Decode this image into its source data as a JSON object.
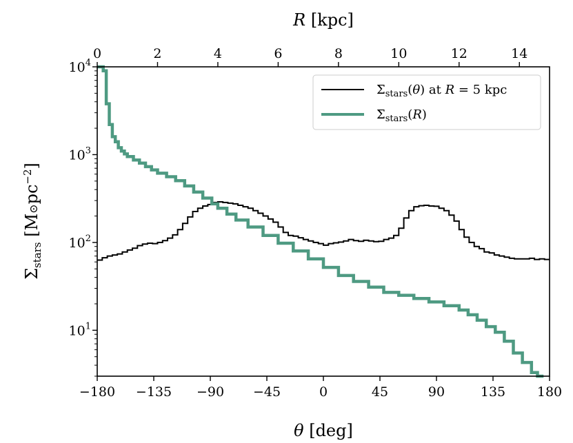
{
  "chart_data": {
    "type": "line",
    "bottom_axis": {
      "label": "θ [deg]",
      "range": [
        -180,
        180
      ],
      "ticks": [
        -180,
        -135,
        -90,
        -45,
        0,
        45,
        90,
        135,
        180
      ],
      "tick_labels": [
        "−180",
        "−135",
        "−90",
        "−45",
        "0",
        "45",
        "90",
        "135",
        "180"
      ]
    },
    "top_axis": {
      "label": "R [kpc]",
      "range": [
        0,
        15
      ],
      "ticks": [
        0,
        2,
        4,
        6,
        8,
        10,
        12,
        14
      ],
      "tick_labels": [
        "0",
        "2",
        "4",
        "6",
        "8",
        "10",
        "12",
        "14"
      ]
    },
    "y_axis": {
      "label": "Σstars [M⊙pc−2]",
      "scale": "log",
      "range": [
        3,
        10000
      ],
      "ticks": [
        10,
        100,
        1000,
        10000
      ],
      "tick_labels": [
        "10^1",
        "10^2",
        "10^3",
        "10^4"
      ]
    },
    "legend": {
      "position": "top-right"
    },
    "series": [
      {
        "name": "Σstars(θ) at R = 5 kpc",
        "axis": "bottom",
        "color": "#000000",
        "style": "step",
        "x": [
          -180,
          -176,
          -172,
          -168,
          -164,
          -160,
          -156,
          -152,
          -148,
          -144,
          -140,
          -136,
          -132,
          -128,
          -124,
          -120,
          -116,
          -112,
          -108,
          -104,
          -100,
          -96,
          -92,
          -88,
          -84,
          -80,
          -76,
          -72,
          -68,
          -64,
          -60,
          -56,
          -52,
          -48,
          -44,
          -40,
          -36,
          -32,
          -28,
          -24,
          -20,
          -16,
          -12,
          -8,
          -4,
          0,
          4,
          8,
          12,
          16,
          20,
          24,
          28,
          32,
          36,
          40,
          44,
          48,
          52,
          56,
          60,
          64,
          68,
          72,
          76,
          80,
          84,
          88,
          92,
          96,
          100,
          104,
          108,
          112,
          116,
          120,
          124,
          128,
          132,
          136,
          140,
          144,
          148,
          152,
          156,
          160,
          164,
          168,
          172,
          176
        ],
        "y": [
          63,
          67,
          70,
          72,
          74,
          78,
          82,
          86,
          92,
          96,
          98,
          97,
          100,
          105,
          112,
          122,
          140,
          165,
          195,
          225,
          245,
          260,
          270,
          285,
          290,
          285,
          280,
          275,
          265,
          255,
          245,
          230,
          215,
          200,
          185,
          170,
          150,
          130,
          120,
          118,
          113,
          108,
          104,
          100,
          97,
          93,
          97,
          99,
          101,
          104,
          108,
          105,
          103,
          106,
          104,
          102,
          103,
          108,
          112,
          120,
          145,
          190,
          230,
          255,
          262,
          265,
          260,
          258,
          245,
          230,
          205,
          175,
          140,
          115,
          100,
          90,
          85,
          78,
          76,
          72,
          70,
          68,
          66,
          65,
          65,
          65,
          66,
          64,
          65,
          64
        ]
      },
      {
        "name": "Σstars(R)",
        "axis": "top",
        "color": "#4e9a82",
        "style": "step",
        "x": [
          0,
          0.1,
          0.2,
          0.3,
          0.4,
          0.5,
          0.6,
          0.7,
          0.8,
          0.9,
          1.0,
          1.2,
          1.4,
          1.6,
          1.8,
          2.0,
          2.3,
          2.6,
          2.9,
          3.2,
          3.5,
          3.8,
          4.0,
          4.3,
          4.6,
          5.0,
          5.5,
          6.0,
          6.5,
          7.0,
          7.5,
          8.0,
          8.5,
          9.0,
          9.5,
          10.0,
          10.5,
          11.0,
          11.5,
          12.0,
          12.3,
          12.6,
          12.9,
          13.2,
          13.5,
          13.8,
          14.1,
          14.4,
          14.6
        ],
        "y": [
          10000,
          10000,
          9000,
          3800,
          2200,
          1600,
          1400,
          1200,
          1100,
          1020,
          950,
          870,
          800,
          730,
          670,
          615,
          560,
          505,
          440,
          375,
          320,
          275,
          245,
          210,
          180,
          150,
          120,
          98,
          80,
          65,
          52,
          42,
          36,
          31,
          27,
          25,
          23,
          21,
          19,
          17,
          15,
          13,
          11,
          9.5,
          7.5,
          5.5,
          4.3,
          3.3,
          3.0
        ]
      }
    ]
  }
}
